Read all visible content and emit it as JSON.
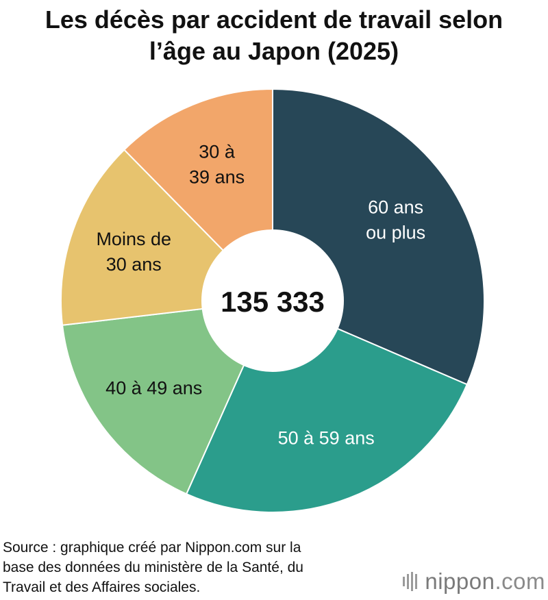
{
  "title": {
    "line1": "Les décès par accident de travail selon",
    "line2": "l’âge au Japon (2025)"
  },
  "chart_data": {
    "type": "pie",
    "donut": true,
    "center_label": "135 333",
    "slices": [
      {
        "label_lines": [
          "60 ans",
          "ou plus"
        ],
        "value": 42600,
        "color": "#274757",
        "text_color": "#ffffff"
      },
      {
        "label_lines": [
          "50 à 59 ans"
        ],
        "value": 34100,
        "color": "#2b9d8c",
        "text_color": "#ffffff"
      },
      {
        "label_lines": [
          "40 à 49 ans"
        ],
        "value": 22300,
        "color": "#83c487",
        "text_color": "#111111"
      },
      {
        "label_lines": [
          "Moins de",
          "30 ans"
        ],
        "value": 19600,
        "color": "#e7c36e",
        "text_color": "#111111"
      },
      {
        "label_lines": [
          "30 à",
          "39 ans"
        ],
        "value": 16733,
        "color": "#f2a66a",
        "text_color": "#111111"
      }
    ]
  },
  "source": {
    "line1": "Source : graphique créé par Nippon.com sur la",
    "line2": "base des données du ministère de la Santé, du",
    "line3": "Travail et des Affaires sociales."
  },
  "logo": {
    "name": "nippon",
    "suffix": ".com"
  }
}
